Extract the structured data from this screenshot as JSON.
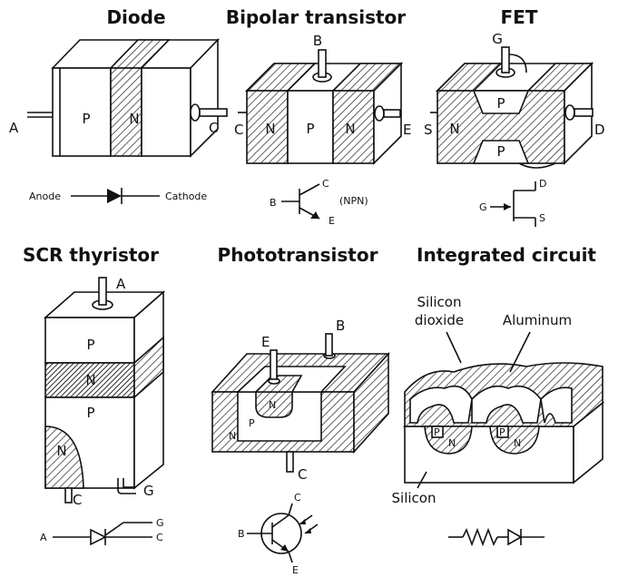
{
  "panels": {
    "diode": {
      "title": "Diode",
      "regions": [
        "P",
        "N"
      ],
      "terminals": [
        "A",
        "C"
      ],
      "symbol": {
        "left": "Anode",
        "right": "Cathode"
      }
    },
    "bjt": {
      "title": "Bipolar transistor",
      "regions": [
        "N",
        "P",
        "N"
      ],
      "terminals": [
        "B",
        "C",
        "E"
      ],
      "symbol": {
        "b": "B",
        "c": "C",
        "e": "E",
        "type": "(NPN)"
      }
    },
    "fet": {
      "title": "FET",
      "regions": [
        "P",
        "N",
        "P"
      ],
      "terminals": [
        "G",
        "S",
        "D"
      ],
      "symbol": {
        "g": "G",
        "d": "D",
        "s": "S"
      }
    },
    "scr": {
      "title": "SCR thyristor",
      "regions": [
        "P",
        "N",
        "P",
        "N"
      ],
      "terminals": [
        "A",
        "C",
        "G"
      ],
      "symbol": {
        "a": "A",
        "g": "G",
        "c": "C"
      }
    },
    "photo": {
      "title": "Phototransistor",
      "regions": [
        "N",
        "P",
        "N"
      ],
      "terminals": [
        "E",
        "B",
        "C"
      ],
      "symbol": {
        "c": "C",
        "b": "B",
        "e": "E"
      }
    },
    "ic": {
      "title": "Integrated circuit",
      "labels": {
        "oxide_1": "Silicon",
        "oxide_2": "dioxide",
        "aluminum": "Aluminum",
        "silicon": "Silicon"
      },
      "regions": [
        "P",
        "P",
        "N",
        "N"
      ]
    }
  }
}
